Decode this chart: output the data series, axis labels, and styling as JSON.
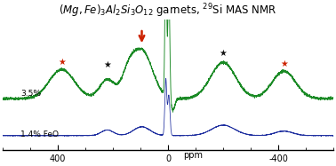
{
  "xmin": 600,
  "xmax": -600,
  "label_35": "3.5%",
  "label_14": "1.4% FeO",
  "green_color": "#1a8a25",
  "blue_color": "#2030a0",
  "red_color": "#cc2200",
  "black_color": "#111111",
  "xticks": [
    400,
    0,
    -400
  ],
  "xlabel": "ppm",
  "background": "#ffffff",
  "title": "$(Mg,Fe)_3Al_2Si_3O_{12}$ garnets, $^{29}$Si MAS NMR",
  "title_fontsize": 8.5,
  "g_base": 0.38,
  "b_base": 0.08,
  "g_scale": 0.28,
  "b_scale": 0.13,
  "noise_g": 0.018,
  "noise_b": 0.01
}
